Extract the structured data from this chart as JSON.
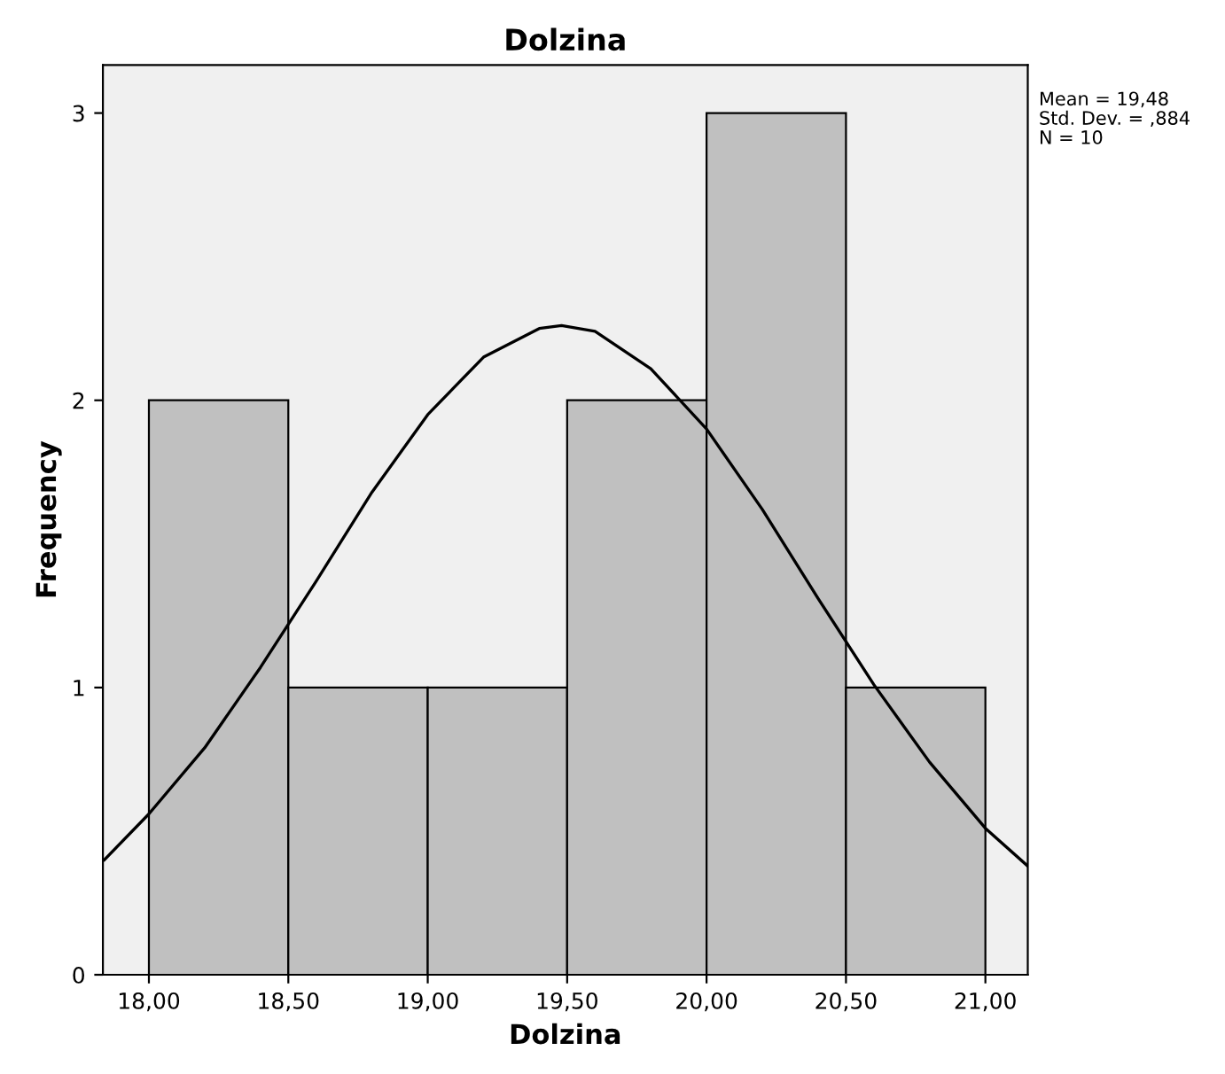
{
  "chart_data": {
    "type": "histogram",
    "title": "Dolzina",
    "xlabel": "Dolzina",
    "ylabel": "Frequency",
    "bins": [
      18,
      18.5,
      19,
      19.5,
      20,
      20.5,
      21
    ],
    "values": [
      2,
      1,
      1,
      2,
      3,
      1
    ],
    "color": "#c0c0c0",
    "series": [
      {
        "type": "line",
        "color": "#000000",
        "x": [
          17.84,
          18.0,
          18.2,
          18.4,
          18.6,
          18.8,
          19.0,
          19.2,
          19.4,
          19.48,
          19.6,
          19.8,
          20.0,
          20.2,
          20.4,
          20.6,
          20.8,
          21.0,
          21.15
        ],
        "values": [
          0.4,
          0.56,
          0.79,
          1.07,
          1.37,
          1.68,
          1.95,
          2.15,
          2.25,
          2.26,
          2.24,
          2.11,
          1.9,
          1.62,
          1.31,
          1.01,
          0.74,
          0.51,
          0.38
        ]
      }
    ],
    "xlim": [
      17.835,
      21.152
    ],
    "ylim": [
      0,
      3.167
    ],
    "xticks": [
      {
        "value": 18,
        "label": "18,00"
      },
      {
        "value": 18.5,
        "label": "18,50"
      },
      {
        "value": 19,
        "label": "19,00"
      },
      {
        "value": 19.5,
        "label": "19,50"
      },
      {
        "value": 20,
        "label": "20,00"
      },
      {
        "value": 20.5,
        "label": "20,50"
      },
      {
        "value": 21,
        "label": "21,00"
      }
    ],
    "yticks": [
      0,
      1,
      2,
      3
    ],
    "grid": false,
    "annotations": [
      "Mean = 19,48",
      "Std. Dev. = ,884",
      "N = 10"
    ]
  }
}
